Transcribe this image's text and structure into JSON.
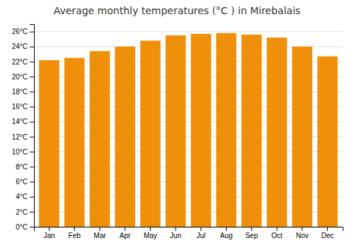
{
  "chart_data": {
    "type": "bar",
    "title": "Average monthly temperatures (°C ) in Mirebalais",
    "categories": [
      "Jan",
      "Feb",
      "Mar",
      "Apr",
      "May",
      "Jun",
      "Jul",
      "Aug",
      "Sep",
      "Oct",
      "Nov",
      "Dec"
    ],
    "values": [
      22.2,
      22.5,
      23.4,
      24.0,
      24.8,
      25.5,
      25.7,
      25.8,
      25.6,
      25.2,
      24.0,
      22.7
    ],
    "color": "#F0900A",
    "ylim": [
      0,
      27
    ],
    "yticks": [
      {
        "value": 0,
        "label": "0°C"
      },
      {
        "value": 2,
        "label": "2°C"
      },
      {
        "value": 4,
        "label": "4°C"
      },
      {
        "value": 6,
        "label": "6°C"
      },
      {
        "value": 8,
        "label": "8°C"
      },
      {
        "value": 10,
        "label": "10°C"
      },
      {
        "value": 12,
        "label": "12°C"
      },
      {
        "value": 14,
        "label": "14°C"
      },
      {
        "value": 16,
        "label": "16°C"
      },
      {
        "value": 18,
        "label": "18°C"
      },
      {
        "value": 20,
        "label": "20°C"
      },
      {
        "value": 22,
        "label": "22°C"
      },
      {
        "value": 24,
        "label": "24°C"
      },
      {
        "value": 26,
        "label": "26°C"
      }
    ],
    "grid": true
  }
}
